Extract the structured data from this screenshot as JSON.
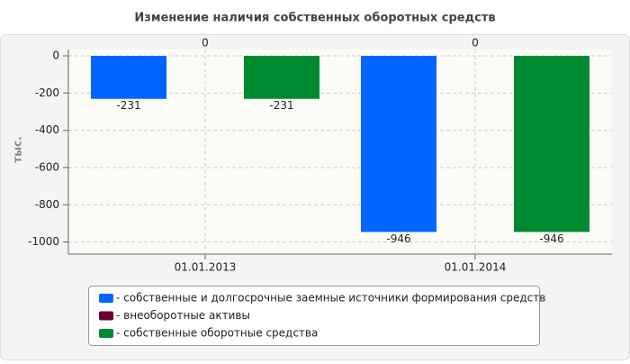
{
  "chart_data": {
    "type": "bar",
    "title": "Изменение наличия собственных оборотных средств",
    "y_label": "тыс.",
    "categories": [
      "01.01.2013",
      "01.01.2014"
    ],
    "series": [
      {
        "name": "- собственные и долгосрочные заемные источники формирования средств",
        "color": "#0066ff",
        "values": [
          -231,
          -946
        ]
      },
      {
        "name": "- внеоборотные активы",
        "color": "#6b0030",
        "values": [
          0,
          0
        ]
      },
      {
        "name": "- собственные оборотные средства",
        "color": "#008a30",
        "values": [
          -231,
          -946
        ]
      }
    ],
    "ylim": [
      -1060,
      0
    ],
    "yticks": [
      0,
      -200,
      -400,
      -600,
      -800,
      -1000
    ],
    "grid": true
  }
}
